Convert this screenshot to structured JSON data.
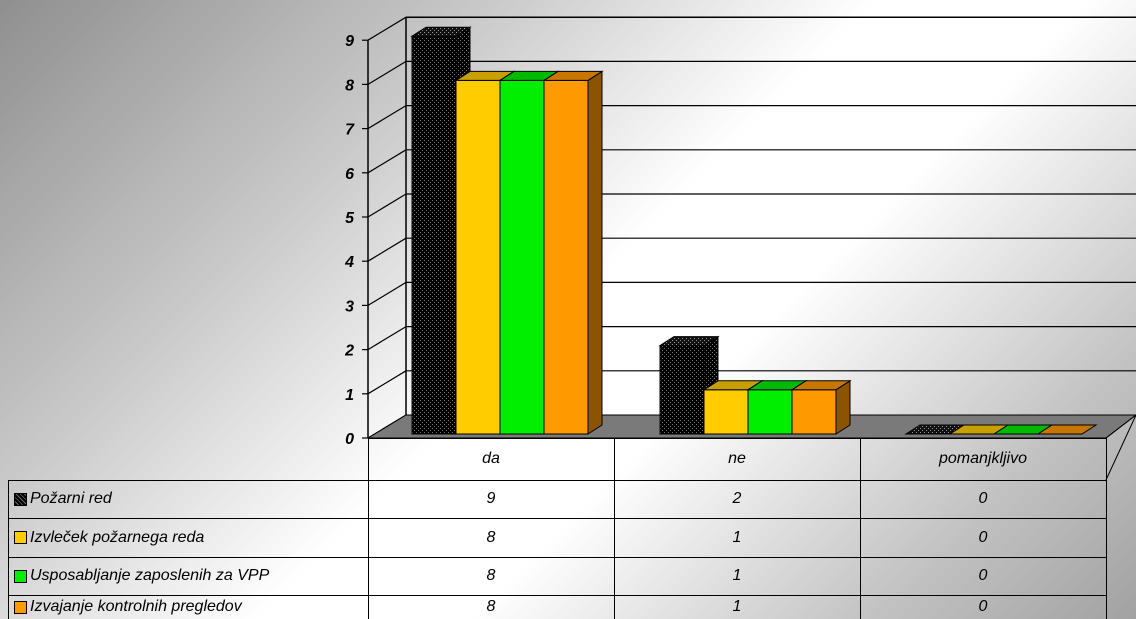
{
  "chart_data": {
    "type": "bar",
    "categories": [
      "da",
      "ne",
      "pomanjkljivo"
    ],
    "series": [
      {
        "name": "Požarni red",
        "values": [
          9,
          2,
          0
        ],
        "color": "#000000",
        "pattern": "dotted"
      },
      {
        "name": "Izvleček požarnega reda",
        "values": [
          8,
          1,
          0
        ],
        "color": "#ffcc00"
      },
      {
        "name": "Usposabljanje zaposlenih za VPP",
        "values": [
          8,
          1,
          0
        ],
        "color": "#00ee00"
      },
      {
        "name": "Izvajanje kontrolnih pregledov",
        "values": [
          8,
          1,
          0
        ],
        "color": "#ff9900"
      }
    ],
    "ylim": [
      0,
      9
    ],
    "yticks": [
      "0",
      "1",
      "2",
      "3",
      "4",
      "5",
      "6",
      "7",
      "8",
      "9"
    ],
    "grid": true,
    "three_d": true,
    "legend": "data table below chart",
    "table": {
      "rows": [
        {
          "label": "Požarni red",
          "values": [
            "9",
            "2",
            "0"
          ]
        },
        {
          "label": "Izvleček požarnega reda",
          "values": [
            "8",
            "1",
            "0"
          ]
        },
        {
          "label": "Usposabljanje zaposlenih za VPP",
          "values": [
            "8",
            "1",
            "0"
          ]
        },
        {
          "label": "Izvajanje kontrolnih pregledov",
          "values": [
            "8",
            "1",
            "0"
          ]
        }
      ]
    }
  }
}
